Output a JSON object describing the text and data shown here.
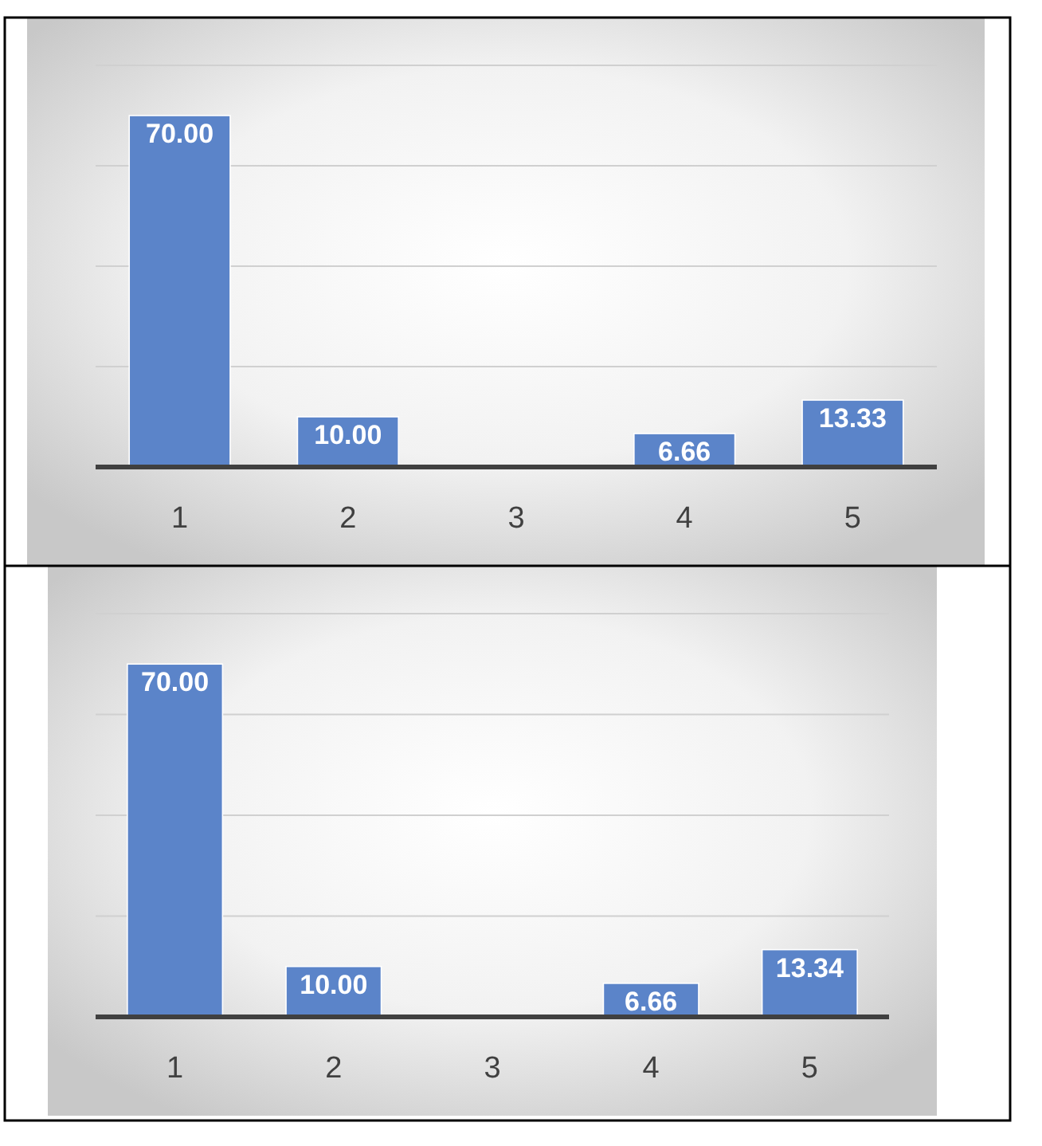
{
  "chart_data": [
    {
      "type": "bar",
      "categories": [
        "1",
        "2",
        "3",
        "4",
        "5"
      ],
      "values": [
        70,
        10,
        0,
        6.66,
        13.33
      ],
      "value_labels": [
        "70.00",
        "10.00",
        null,
        "6.66",
        "13.33"
      ],
      "color": "#5b84c9",
      "ylim": [
        0,
        80
      ],
      "yticks": [
        {
          "value": 0,
          "label": null
        },
        {
          "value": 20,
          "label": null
        },
        {
          "value": 40,
          "label": null
        },
        {
          "value": 60,
          "label": null
        },
        {
          "value": 80,
          "label": null
        }
      ],
      "grid": "y",
      "tick_labels": "x"
    },
    {
      "type": "bar",
      "categories": [
        "1",
        "2",
        "3",
        "4",
        "5"
      ],
      "values": [
        70,
        10,
        0,
        6.66,
        13.34
      ],
      "value_labels": [
        "70.00",
        "10.00",
        null,
        "6.66",
        "13.34"
      ],
      "color": "#5b84c9",
      "ylim": [
        0,
        80
      ],
      "yticks": [
        {
          "value": 0,
          "label": null
        },
        {
          "value": 20,
          "label": null
        },
        {
          "value": 40,
          "label": null
        },
        {
          "value": 60,
          "label": null
        },
        {
          "value": 80,
          "label": null
        }
      ],
      "grid": "y",
      "tick_labels": "x"
    }
  ]
}
